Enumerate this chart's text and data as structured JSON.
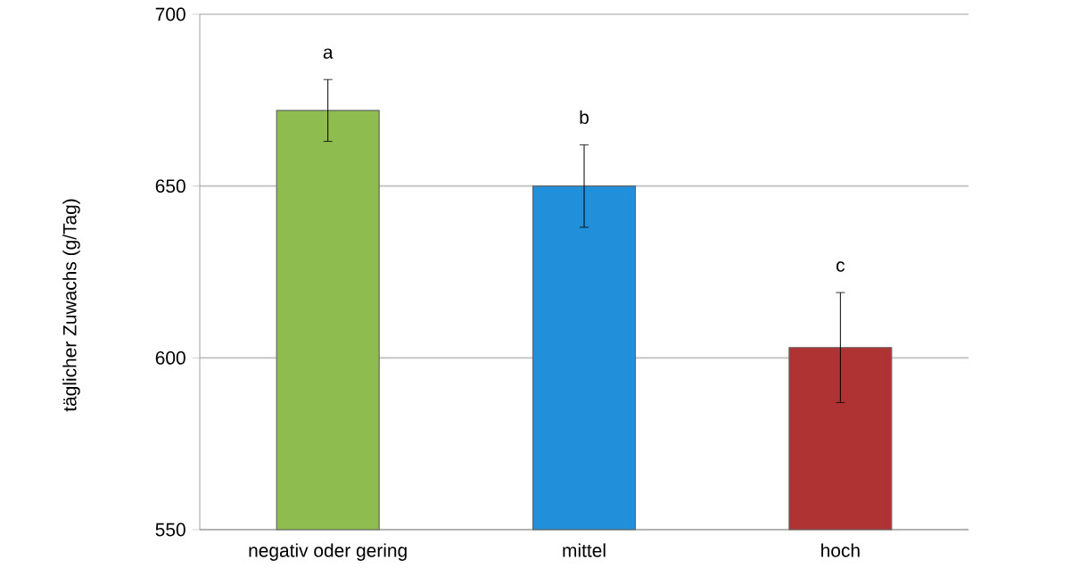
{
  "chart_data": {
    "type": "bar",
    "ylabel": "täglicher Zuwachs (g/Tag)",
    "categories": [
      "negativ oder gering",
      "mittel",
      "hoch"
    ],
    "values": [
      672,
      650,
      603
    ],
    "errors": [
      9,
      12,
      16
    ],
    "colors": [
      "#8fbc4f",
      "#218fd9",
      "#b03333"
    ],
    "ylim": [
      550,
      700
    ],
    "yticks": [
      550,
      600,
      650,
      700
    ],
    "grid": "y",
    "annotations": [
      "a",
      "b",
      "c"
    ]
  }
}
